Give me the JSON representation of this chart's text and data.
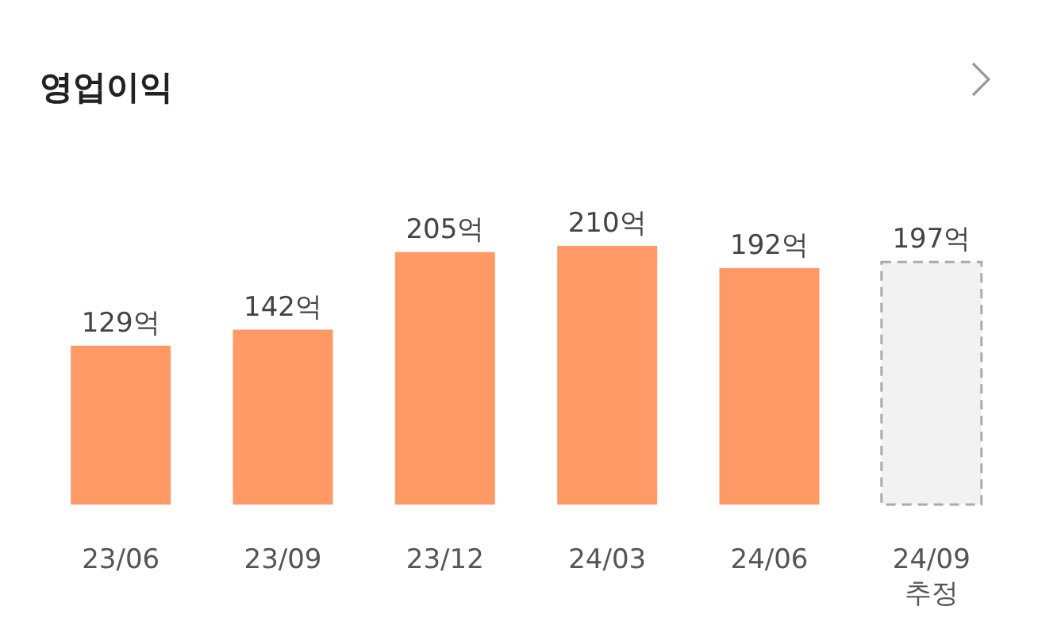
{
  "chart_data": {
    "type": "bar",
    "title": "영업이익",
    "categories": [
      "23/06",
      "23/09",
      "23/12",
      "24/03",
      "24/06",
      "24/09\n추정"
    ],
    "series": [
      {
        "color": "#ff9966",
        "values": [
          129,
          142,
          205,
          210,
          192,
          null
        ],
        "value_labels": [
          "129억",
          "142억",
          "205억",
          "210억",
          "192억",
          null
        ]
      },
      {
        "color": "#f2f2f2",
        "line_style": "dashed",
        "values": [
          null,
          null,
          null,
          null,
          null,
          197
        ],
        "value_labels": [
          null,
          null,
          null,
          null,
          null,
          "197억"
        ]
      }
    ]
  }
}
